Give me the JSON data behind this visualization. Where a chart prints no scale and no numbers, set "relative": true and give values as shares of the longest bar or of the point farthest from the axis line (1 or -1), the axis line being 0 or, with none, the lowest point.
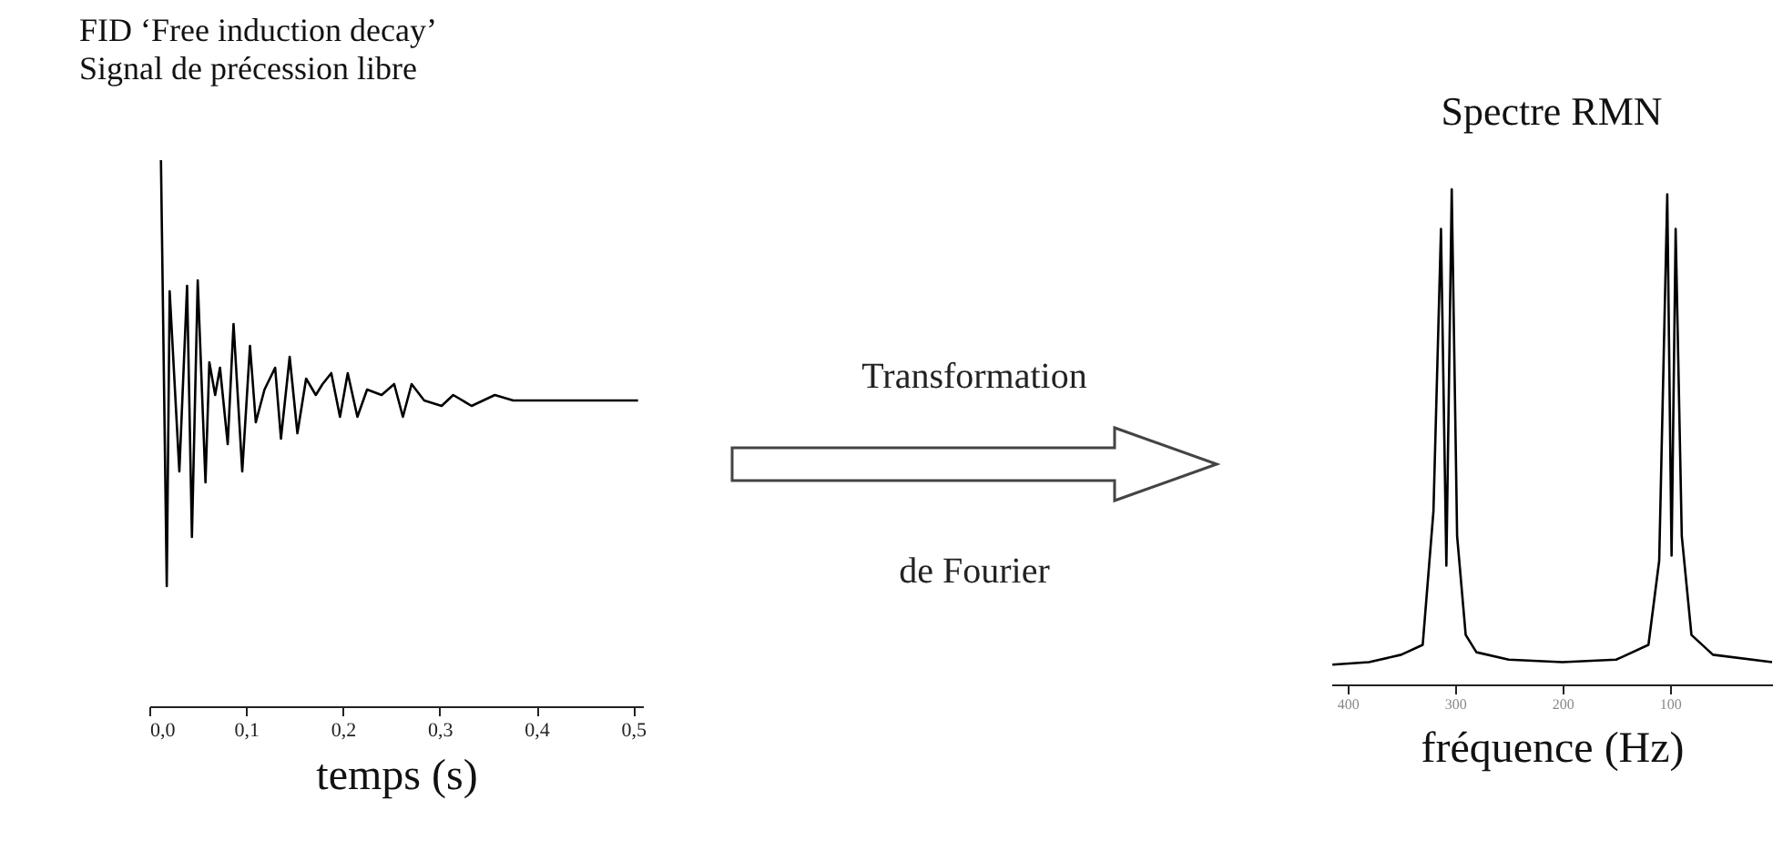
{
  "chart_data": [
    {
      "type": "line",
      "title": "FID ‘Free induction decay’",
      "subtitle": "Signal de précession libre",
      "xlabel": "temps (s)",
      "relative": true,
      "xlim": [
        0,
        0.51
      ],
      "xticks": [
        {
          "value": 0,
          "label": "0,0"
        },
        {
          "value": 0.1,
          "label": "0,1"
        },
        {
          "value": 0.2,
          "label": "0,2"
        },
        {
          "value": 0.3,
          "label": "0,3"
        },
        {
          "value": 0.4,
          "label": "0,4"
        },
        {
          "value": 0.5,
          "label": "0,5"
        }
      ],
      "grid": false,
      "tick_labels": "x",
      "marker": "none",
      "line_style": "solid",
      "series": [
        {
          "color": "#000000",
          "x": [
            0.012,
            0.018,
            0.021,
            0.031,
            0.039,
            0.044,
            0.05,
            0.058,
            0.062,
            0.068,
            0.073,
            0.081,
            0.087,
            0.096,
            0.104,
            0.11,
            0.119,
            0.13,
            0.136,
            0.145,
            0.153,
            0.162,
            0.172,
            0.179,
            0.188,
            0.197,
            0.205,
            0.215,
            0.225,
            0.24,
            0.253,
            0.262,
            0.271,
            0.284,
            0.302,
            0.314,
            0.333,
            0.357,
            0.376,
            0.388,
            0.505
          ],
          "values": [
            1.0,
            0.22,
            0.76,
            0.43,
            0.77,
            0.31,
            0.78,
            0.41,
            0.63,
            0.57,
            0.62,
            0.48,
            0.7,
            0.43,
            0.66,
            0.52,
            0.58,
            0.62,
            0.49,
            0.64,
            0.5,
            0.6,
            0.57,
            0.59,
            0.61,
            0.53,
            0.61,
            0.53,
            0.58,
            0.57,
            0.59,
            0.53,
            0.59,
            0.56,
            0.55,
            0.57,
            0.55,
            0.57,
            0.56,
            0.56,
            0.56
          ]
        }
      ]
    },
    {
      "type": "other",
      "annotations": [
        "Transformation",
        "de Fourier"
      ]
    },
    {
      "type": "line",
      "title": "Spectre RMN",
      "xlabel": "fréquence (Hz)",
      "relative": true,
      "xlim": [
        415,
        5
      ],
      "xticks": [
        400,
        300,
        200,
        100
      ],
      "grid": false,
      "tick_labels": "x",
      "marker": "none",
      "line_style": "solid",
      "series": [
        {
          "color": "#000000",
          "x": [
            414,
            380,
            350,
            330,
            320,
            313,
            308,
            303,
            298,
            290,
            280,
            250,
            200,
            150,
            120,
            110,
            102.5,
            98.5,
            94.7,
            89,
            80,
            60,
            5
          ],
          "values": [
            0.04,
            0.045,
            0.06,
            0.08,
            0.35,
            0.92,
            0.24,
            1.0,
            0.3,
            0.1,
            0.065,
            0.05,
            0.045,
            0.05,
            0.08,
            0.25,
            0.99,
            0.26,
            0.92,
            0.3,
            0.1,
            0.06,
            0.045
          ]
        }
      ]
    }
  ]
}
